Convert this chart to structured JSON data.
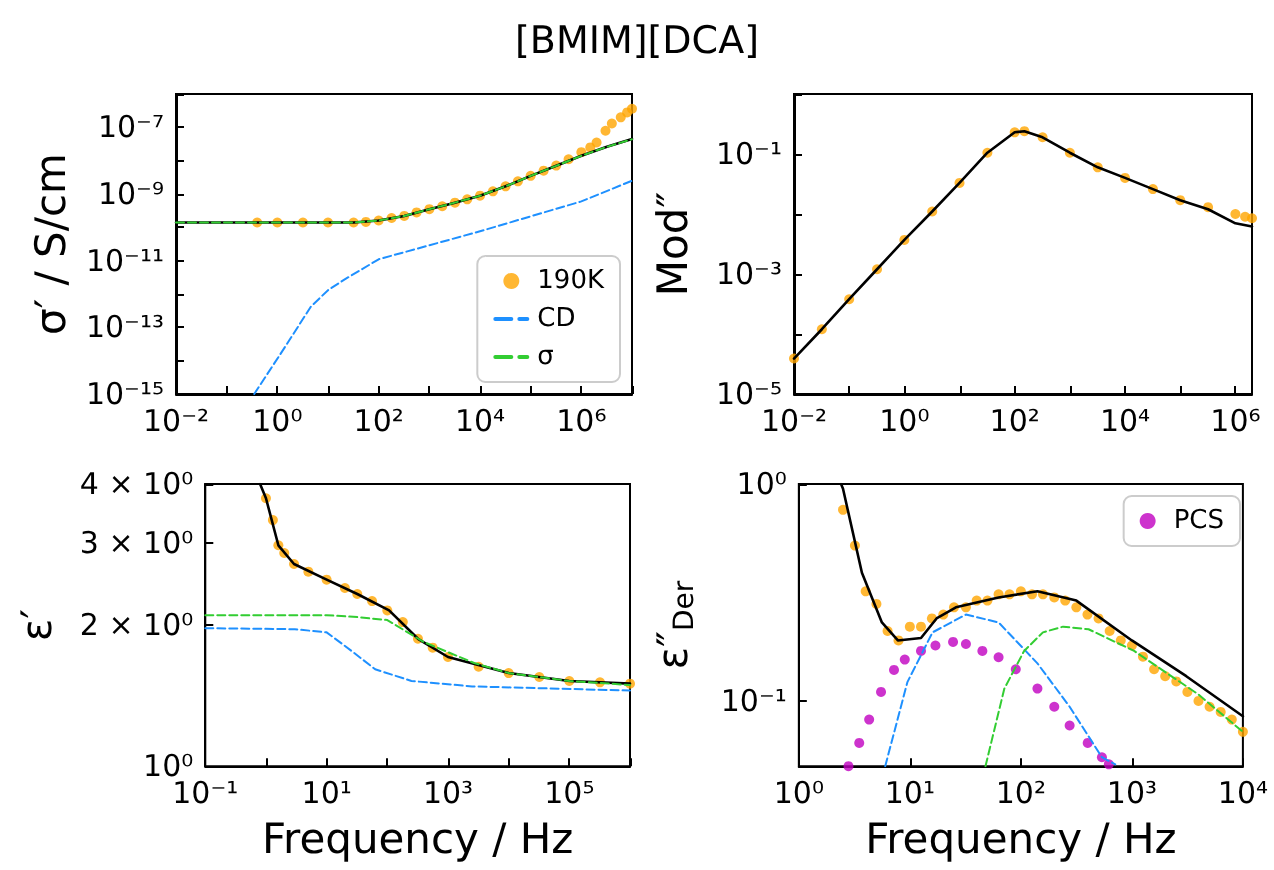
{
  "chart_data": [
    {
      "type": "line",
      "title": "[BMIM][DCA]",
      "ylabel": "σ′ / S/cm",
      "log": "xy",
      "grid": false,
      "legend": "bottom right",
      "xlim": [
        0.01,
        10000000
      ],
      "ylim": [
        1e-15,
        1e-06
      ],
      "xticks": [
        {
          "value": 0.01,
          "label": "10⁻²"
        },
        {
          "value": 0.1,
          "label": null
        },
        {
          "value": 1,
          "label": "10⁰"
        },
        {
          "value": 10,
          "label": null
        },
        {
          "value": 100,
          "label": "10²"
        },
        {
          "value": 1000,
          "label": null
        },
        {
          "value": 10000,
          "label": "10⁴"
        },
        {
          "value": 100000,
          "label": null
        },
        {
          "value": 1000000,
          "label": "10⁶"
        },
        {
          "value": 10000000,
          "label": null
        }
      ],
      "yticks": [
        {
          "value": 1e-15,
          "label": "10⁻¹⁵"
        },
        {
          "value": 1e-14,
          "label": null
        },
        {
          "value": 1e-13,
          "label": "10⁻¹³"
        },
        {
          "value": 1e-12,
          "label": null
        },
        {
          "value": 1e-11,
          "label": "10⁻¹¹"
        },
        {
          "value": 1e-10,
          "label": null
        },
        {
          "value": 1e-09,
          "label": "10⁻⁹"
        },
        {
          "value": 1e-08,
          "label": null
        },
        {
          "value": 1e-07,
          "label": "10⁻⁷"
        },
        {
          "value": 1e-06,
          "label": null
        }
      ],
      "series": [
        {
          "name": "190K",
          "type": "scatter",
          "marker": "circle",
          "color": "#ffa500",
          "x": [
            0.4,
            1,
            3.2,
            10,
            32,
            56,
            100,
            180,
            320,
            560,
            1000,
            1800,
            3200,
            5600,
            10000,
            18000,
            32000,
            56000,
            100000,
            180000,
            320000,
            560000,
            1000000,
            1500000,
            2000000,
            3000000,
            4000000,
            6000000,
            8000000,
            10000000
          ],
          "values": [
            1.4e-10,
            1.4e-10,
            1.4e-10,
            1.4e-10,
            1.4e-10,
            1.45e-10,
            1.6e-10,
            1.9e-10,
            2.2e-10,
            2.8e-10,
            3.5e-10,
            4.3e-10,
            5.5e-10,
            6.9e-10,
            8.9e-10,
            1.2e-09,
            1.7e-09,
            2.4e-09,
            3.5e-09,
            5e-09,
            7.1e-09,
            1.1e-08,
            1.8e-08,
            2.5e-08,
            3.5e-08,
            7.9e-08,
            1.3e-07,
            2e-07,
            2.8e-07,
            3.6e-07
          ]
        },
        {
          "marker": "none",
          "line_style": "solid",
          "color": "#000000",
          "x": [
            0.01,
            1,
            32,
            100,
            320,
            1000,
            3200,
            10000,
            32000,
            100000,
            320000,
            1000000,
            3200000,
            10000000
          ],
          "values": [
            1.4e-10,
            1.4e-10,
            1.4e-10,
            1.6e-10,
            2.2e-10,
            3.5e-10,
            5.5e-10,
            8.9e-10,
            1.7e-09,
            3.5e-09,
            7e-09,
            1.4e-08,
            2.6e-08,
            4.5e-08
          ]
        },
        {
          "name": "CD",
          "marker": "none",
          "line_style": "dashed",
          "color": "#1e90ff",
          "x": [
            0.35,
            1.4,
            4.6,
            10,
            21,
            100,
            10000,
            1000000,
            10000000
          ],
          "values": [
            1e-15,
            2.5e-14,
            4.2e-13,
            1.3e-12,
            2.7e-12,
            1.1e-11,
            7.6e-11,
            6e-10,
            2.5e-09
          ]
        },
        {
          "name": "σ",
          "marker": "none",
          "line_style": "dashed",
          "color": "#32cd32",
          "x": [
            0.01,
            1,
            32,
            100,
            320,
            1000,
            3200,
            10000,
            32000,
            100000,
            320000,
            1000000,
            3200000,
            10000000
          ],
          "values": [
            1.4e-10,
            1.4e-10,
            1.4e-10,
            1.6e-10,
            2.2e-10,
            3.5e-10,
            5.5e-10,
            8.9e-10,
            1.7e-09,
            3.5e-09,
            7e-09,
            1.4e-08,
            2.6e-08,
            4.4e-08
          ]
        }
      ]
    },
    {
      "type": "line",
      "ylabel": "Mod″",
      "log": "xy",
      "grid": false,
      "xlim": [
        0.01,
        2000000
      ],
      "ylim": [
        1e-05,
        1
      ],
      "xticks": [
        {
          "value": 0.01,
          "label": "10⁻²"
        },
        {
          "value": 0.1,
          "label": null
        },
        {
          "value": 1,
          "label": "10⁰"
        },
        {
          "value": 10,
          "label": null
        },
        {
          "value": 100,
          "label": "10²"
        },
        {
          "value": 1000,
          "label": null
        },
        {
          "value": 10000,
          "label": "10⁴"
        },
        {
          "value": 100000,
          "label": null
        },
        {
          "value": 1000000,
          "label": "10⁶"
        }
      ],
      "yticks": [
        {
          "value": 1e-05,
          "label": "10⁻⁵"
        },
        {
          "value": 0.0001,
          "label": null
        },
        {
          "value": 0.001,
          "label": "10⁻³"
        },
        {
          "value": 0.01,
          "label": null
        },
        {
          "value": 0.1,
          "label": "10⁻¹"
        },
        {
          "value": 1,
          "label": null
        }
      ],
      "series": [
        {
          "type": "scatter",
          "marker": "circle",
          "color": "#ffa500",
          "x": [
            0.01,
            0.032,
            0.1,
            0.32,
            1,
            3.2,
            10,
            32,
            100,
            150,
            320,
            1000,
            3200,
            10000,
            32000,
            100000,
            320000,
            1000000,
            1500000,
            2000000
          ],
          "values": [
            3.9e-05,
            0.00012,
            0.00038,
            0.0012,
            0.0037,
            0.011,
            0.033,
            0.105,
            0.23,
            0.24,
            0.19,
            0.105,
            0.06,
            0.04,
            0.026,
            0.017,
            0.013,
            0.01,
            0.009,
            0.0085
          ]
        },
        {
          "marker": "none",
          "line_style": "solid",
          "color": "#000000",
          "x": [
            0.01,
            0.032,
            0.1,
            0.32,
            1,
            3.2,
            10,
            32,
            100,
            150,
            320,
            1000,
            3200,
            10000,
            32000,
            100000,
            320000,
            1000000,
            2000000
          ],
          "values": [
            3.9e-05,
            0.00012,
            0.00038,
            0.0012,
            0.0037,
            0.011,
            0.033,
            0.105,
            0.23,
            0.24,
            0.19,
            0.105,
            0.06,
            0.04,
            0.026,
            0.017,
            0.012,
            0.007,
            0.0062
          ]
        }
      ]
    },
    {
      "type": "line",
      "ylabel": "ε′",
      "xlabel": "Frequency / Hz",
      "log": "xy",
      "grid": false,
      "xlim": [
        0.1,
        1000000
      ],
      "ylim": [
        1,
        4
      ],
      "xticks": [
        {
          "value": 0.1,
          "label": "10⁻¹"
        },
        {
          "value": 1,
          "label": null
        },
        {
          "value": 10,
          "label": "10¹"
        },
        {
          "value": 100,
          "label": null
        },
        {
          "value": 1000,
          "label": "10³"
        },
        {
          "value": 10000,
          "label": null
        },
        {
          "value": 100000,
          "label": "10⁵"
        },
        {
          "value": 1000000,
          "label": null
        }
      ],
      "yticks": [
        {
          "value": 1,
          "label": "10⁰"
        },
        {
          "value": 2,
          "label": "2 × 10⁰"
        },
        {
          "value": 3,
          "label": "3 × 10⁰"
        },
        {
          "value": 4,
          "label": "4 × 10⁰"
        }
      ],
      "series": [
        {
          "type": "scatter",
          "marker": "circle",
          "color": "#ffa500",
          "x": [
            1,
            1.3,
            1.6,
            2,
            2.9,
            5,
            10,
            20,
            32,
            56,
            100,
            180,
            320,
            560,
            1000,
            3200,
            10000,
            32000,
            100000,
            320000,
            1000000
          ],
          "values": [
            3.73,
            3.35,
            2.96,
            2.85,
            2.7,
            2.6,
            2.5,
            2.4,
            2.33,
            2.25,
            2.15,
            2.03,
            1.87,
            1.79,
            1.71,
            1.63,
            1.58,
            1.55,
            1.52,
            1.51,
            1.5
          ]
        },
        {
          "marker": "none",
          "line_style": "solid",
          "color": "#000000",
          "x": [
            0.8,
            1,
            1.6,
            2.9,
            10,
            32,
            107,
            320,
            1000,
            10000,
            100000,
            1000000
          ],
          "values": [
            4,
            3.73,
            2.96,
            2.7,
            2.5,
            2.33,
            2.15,
            1.87,
            1.71,
            1.58,
            1.52,
            1.5
          ]
        },
        {
          "marker": "none",
          "line_style": "dashed",
          "color": "#32cd32",
          "x": [
            0.1,
            10,
            32,
            100,
            400,
            2700,
            10000,
            100000,
            1000000
          ],
          "values": [
            2.1,
            2.1,
            2.08,
            2.05,
            1.84,
            1.66,
            1.58,
            1.52,
            1.49
          ]
        },
        {
          "marker": "none",
          "line_style": "dashed",
          "color": "#1e90ff",
          "x": [
            0.1,
            3,
            10,
            26,
            63,
            250,
            2500,
            1000000
          ],
          "values": [
            1.97,
            1.96,
            1.93,
            1.76,
            1.61,
            1.52,
            1.48,
            1.45
          ]
        }
      ]
    },
    {
      "type": "line",
      "ylabel": "ε″$_{Der}$",
      "xlabel": "Frequency / Hz",
      "log": "xy",
      "grid": false,
      "legend": "top right",
      "xlim": [
        1,
        10000
      ],
      "ylim": [
        0.05,
        1
      ],
      "xticks": [
        {
          "value": 1,
          "label": "10⁰"
        },
        {
          "value": 10,
          "label": "10¹"
        },
        {
          "value": 100,
          "label": "10²"
        },
        {
          "value": 1000,
          "label": "10³"
        },
        {
          "value": 10000,
          "label": "10⁴"
        }
      ],
      "yticks": [
        {
          "value": 0.1,
          "label": "10⁻¹"
        },
        {
          "value": 1,
          "label": "10⁰"
        }
      ],
      "series": [
        {
          "type": "scatter",
          "marker": "circle",
          "color": "#ffa500",
          "x": [
            2.5,
            3.2,
            4,
            5,
            6.3,
            7.9,
            10,
            12.6,
            15.8,
            20,
            25,
            32,
            40,
            50,
            63,
            79,
            100,
            126,
            158,
            200,
            251,
            316,
            398,
            501,
            631,
            794,
            1000,
            1259,
            1585,
            1995,
            2512,
            3162,
            3981,
            5012,
            6310,
            7943,
            10000
          ],
          "values": [
            0.76,
            0.52,
            0.32,
            0.28,
            0.21,
            0.19,
            0.22,
            0.22,
            0.24,
            0.25,
            0.27,
            0.27,
            0.29,
            0.29,
            0.31,
            0.31,
            0.32,
            0.31,
            0.31,
            0.3,
            0.29,
            0.27,
            0.25,
            0.24,
            0.21,
            0.19,
            0.18,
            0.16,
            0.14,
            0.13,
            0.123,
            0.11,
            0.1,
            0.094,
            0.089,
            0.082,
            0.072
          ]
        },
        {
          "marker": "none",
          "line_style": "solid",
          "color": "#000000",
          "x": [
            2.4,
            2.5,
            3.7,
            5.6,
            7.8,
            12.6,
            17.4,
            26,
            63,
            141,
            316,
            1000,
            3090,
            10000
          ],
          "values": [
            1,
            0.95,
            0.39,
            0.23,
            0.19,
            0.195,
            0.24,
            0.27,
            0.3,
            0.32,
            0.29,
            0.19,
            0.13,
            0.085
          ]
        },
        {
          "marker": "none",
          "line_style": "dashed",
          "color": "#1e90ff",
          "x": [
            6,
            9.5,
            16,
            32,
            63,
            141,
            275,
            537,
            708
          ],
          "values": [
            0.05,
            0.122,
            0.207,
            0.25,
            0.23,
            0.149,
            0.094,
            0.055,
            0.051
          ]
        },
        {
          "marker": "none",
          "line_style": "dashed",
          "color": "#32cd32",
          "x": [
            48,
            71,
            107,
            158,
            240,
            407,
            1047,
            3981,
            10000
          ],
          "values": [
            0.05,
            0.114,
            0.17,
            0.207,
            0.22,
            0.214,
            0.17,
            0.107,
            0.072
          ]
        },
        {
          "name": "PCS",
          "type": "scatter",
          "marker": "circle",
          "color": "#c000c0",
          "x": [
            2.8,
            3.5,
            4.3,
            5.5,
            7.2,
            9,
            12.6,
            17,
            24.5,
            32,
            45,
            63,
            90,
            141,
            200,
            275,
            400,
            537,
            620
          ],
          "values": [
            0.05,
            0.064,
            0.082,
            0.11,
            0.139,
            0.155,
            0.17,
            0.18,
            0.187,
            0.183,
            0.17,
            0.159,
            0.14,
            0.114,
            0.094,
            0.077,
            0.064,
            0.055,
            0.051
          ]
        }
      ]
    }
  ]
}
